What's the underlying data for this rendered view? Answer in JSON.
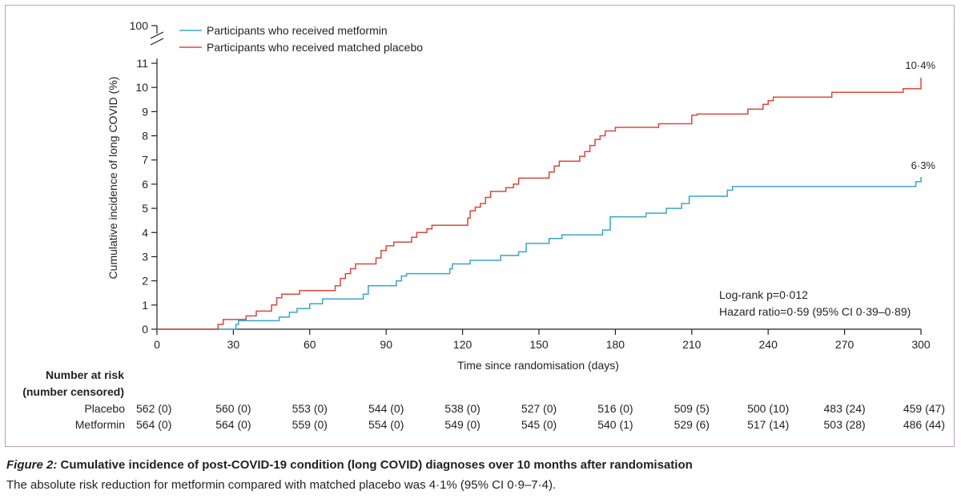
{
  "chart_data": {
    "type": "line",
    "step": true,
    "xlabel": "Time since randomisation (days)",
    "ylabel": "Cumulative incidence of long COVID (%)",
    "xlim": [
      0,
      300
    ],
    "ylim": [
      0,
      11
    ],
    "y_break_tick": 100,
    "x_ticks": [
      0,
      30,
      60,
      90,
      120,
      150,
      180,
      210,
      240,
      270,
      300
    ],
    "y_ticks": [
      0,
      1,
      2,
      3,
      4,
      5,
      6,
      7,
      8,
      9,
      10,
      11
    ],
    "legend_position": "top-left",
    "series": [
      {
        "name": "Participants who received metformin",
        "color": "#3ba6c4",
        "end_label": "6·3%",
        "points": [
          [
            0,
            0
          ],
          [
            31,
            0
          ],
          [
            31,
            0.2
          ],
          [
            32,
            0.2
          ],
          [
            32,
            0.35
          ],
          [
            48,
            0.35
          ],
          [
            48,
            0.5
          ],
          [
            52,
            0.5
          ],
          [
            52,
            0.7
          ],
          [
            55,
            0.7
          ],
          [
            55,
            0.85
          ],
          [
            60,
            0.85
          ],
          [
            60,
            1.05
          ],
          [
            65,
            1.05
          ],
          [
            65,
            1.25
          ],
          [
            81,
            1.25
          ],
          [
            81,
            1.45
          ],
          [
            83,
            1.45
          ],
          [
            83,
            1.8
          ],
          [
            94,
            1.8
          ],
          [
            94,
            2.0
          ],
          [
            96,
            2.0
          ],
          [
            96,
            2.2
          ],
          [
            98,
            2.2
          ],
          [
            98,
            2.3
          ],
          [
            115,
            2.3
          ],
          [
            115,
            2.5
          ],
          [
            116,
            2.5
          ],
          [
            116,
            2.7
          ],
          [
            123,
            2.7
          ],
          [
            123,
            2.85
          ],
          [
            135,
            2.85
          ],
          [
            135,
            3.05
          ],
          [
            142,
            3.05
          ],
          [
            142,
            3.2
          ],
          [
            145,
            3.2
          ],
          [
            145,
            3.55
          ],
          [
            154,
            3.55
          ],
          [
            154,
            3.75
          ],
          [
            159,
            3.75
          ],
          [
            159,
            3.9
          ],
          [
            175,
            3.9
          ],
          [
            175,
            4.1
          ],
          [
            178,
            4.1
          ],
          [
            178,
            4.65
          ],
          [
            192,
            4.65
          ],
          [
            192,
            4.8
          ],
          [
            200,
            4.8
          ],
          [
            200,
            5.0
          ],
          [
            206,
            5.0
          ],
          [
            206,
            5.2
          ],
          [
            209,
            5.2
          ],
          [
            209,
            5.5
          ],
          [
            224,
            5.5
          ],
          [
            224,
            5.75
          ],
          [
            226,
            5.75
          ],
          [
            226,
            5.9
          ],
          [
            298,
            5.9
          ],
          [
            298,
            6.1
          ],
          [
            300,
            6.1
          ],
          [
            300,
            6.3
          ]
        ]
      },
      {
        "name": "Participants who received matched placebo",
        "color": "#d9483b",
        "end_label": "10·4%",
        "points": [
          [
            0,
            0
          ],
          [
            24,
            0
          ],
          [
            24,
            0.2
          ],
          [
            26,
            0.2
          ],
          [
            26,
            0.4
          ],
          [
            35,
            0.4
          ],
          [
            35,
            0.55
          ],
          [
            39,
            0.55
          ],
          [
            39,
            0.75
          ],
          [
            45,
            0.75
          ],
          [
            45,
            1.0
          ],
          [
            47,
            1.0
          ],
          [
            47,
            1.3
          ],
          [
            49,
            1.3
          ],
          [
            49,
            1.45
          ],
          [
            56,
            1.45
          ],
          [
            56,
            1.6
          ],
          [
            70,
            1.6
          ],
          [
            70,
            1.8
          ],
          [
            72,
            1.8
          ],
          [
            72,
            2.1
          ],
          [
            74,
            2.1
          ],
          [
            74,
            2.3
          ],
          [
            76,
            2.3
          ],
          [
            76,
            2.5
          ],
          [
            78,
            2.5
          ],
          [
            78,
            2.7
          ],
          [
            86,
            2.7
          ],
          [
            86,
            2.95
          ],
          [
            88,
            2.95
          ],
          [
            88,
            3.25
          ],
          [
            90,
            3.25
          ],
          [
            90,
            3.45
          ],
          [
            93,
            3.45
          ],
          [
            93,
            3.6
          ],
          [
            100,
            3.6
          ],
          [
            100,
            3.8
          ],
          [
            102,
            3.8
          ],
          [
            102,
            4.0
          ],
          [
            106,
            4.0
          ],
          [
            106,
            4.15
          ],
          [
            108,
            4.15
          ],
          [
            108,
            4.3
          ],
          [
            122,
            4.3
          ],
          [
            122,
            4.6
          ],
          [
            123,
            4.6
          ],
          [
            123,
            4.9
          ],
          [
            125,
            4.9
          ],
          [
            125,
            5.05
          ],
          [
            127,
            5.05
          ],
          [
            127,
            5.2
          ],
          [
            129,
            5.2
          ],
          [
            129,
            5.45
          ],
          [
            131,
            5.45
          ],
          [
            131,
            5.7
          ],
          [
            137,
            5.7
          ],
          [
            137,
            5.85
          ],
          [
            140,
            5.85
          ],
          [
            140,
            6.0
          ],
          [
            142,
            6.0
          ],
          [
            142,
            6.25
          ],
          [
            154,
            6.25
          ],
          [
            154,
            6.5
          ],
          [
            156,
            6.5
          ],
          [
            156,
            6.75
          ],
          [
            158,
            6.75
          ],
          [
            158,
            6.95
          ],
          [
            166,
            6.95
          ],
          [
            166,
            7.15
          ],
          [
            168,
            7.15
          ],
          [
            168,
            7.35
          ],
          [
            170,
            7.35
          ],
          [
            170,
            7.6
          ],
          [
            172,
            7.6
          ],
          [
            172,
            7.85
          ],
          [
            174,
            7.85
          ],
          [
            174,
            8.0
          ],
          [
            176,
            8.0
          ],
          [
            176,
            8.2
          ],
          [
            180,
            8.2
          ],
          [
            180,
            8.35
          ],
          [
            197,
            8.35
          ],
          [
            197,
            8.5
          ],
          [
            210,
            8.5
          ],
          [
            210,
            8.85
          ],
          [
            212,
            8.85
          ],
          [
            212,
            8.9
          ],
          [
            232,
            8.9
          ],
          [
            232,
            9.1
          ],
          [
            238,
            9.1
          ],
          [
            238,
            9.3
          ],
          [
            240,
            9.3
          ],
          [
            240,
            9.45
          ],
          [
            242,
            9.45
          ],
          [
            242,
            9.6
          ],
          [
            265,
            9.6
          ],
          [
            265,
            9.8
          ],
          [
            293,
            9.8
          ],
          [
            293,
            9.95
          ],
          [
            300,
            9.95
          ],
          [
            300,
            10.4
          ]
        ]
      }
    ],
    "annotations": [
      "Log-rank p=0·012",
      "Hazard ratio=0·59 (95% CI 0·39–0·89)"
    ]
  },
  "risk_table": {
    "title_line1": "Number at risk",
    "title_line2": "(number censored)",
    "rows": [
      {
        "label": "Placebo",
        "values": [
          "562 (0)",
          "560 (0)",
          "553 (0)",
          "544 (0)",
          "538 (0)",
          "527 (0)",
          "516 (0)",
          "509 (5)",
          "500 (10)",
          "483 (24)",
          "459 (47)"
        ]
      },
      {
        "label": "Metformin",
        "values": [
          "564 (0)",
          "564 (0)",
          "559 (0)",
          "554 (0)",
          "549 (0)",
          "545 (0)",
          "540 (1)",
          "529 (6)",
          "517 (14)",
          "503 (28)",
          "486 (44)"
        ]
      }
    ]
  },
  "caption": {
    "figure_label": "Figure 2:",
    "title": " Cumulative incidence of post-COVID-19 condition (long COVID) diagnoses over 10 months after randomisation",
    "subtitle": "The absolute risk reduction for metformin compared with matched placebo was 4·1% (95% CI 0·9–7·4)."
  }
}
